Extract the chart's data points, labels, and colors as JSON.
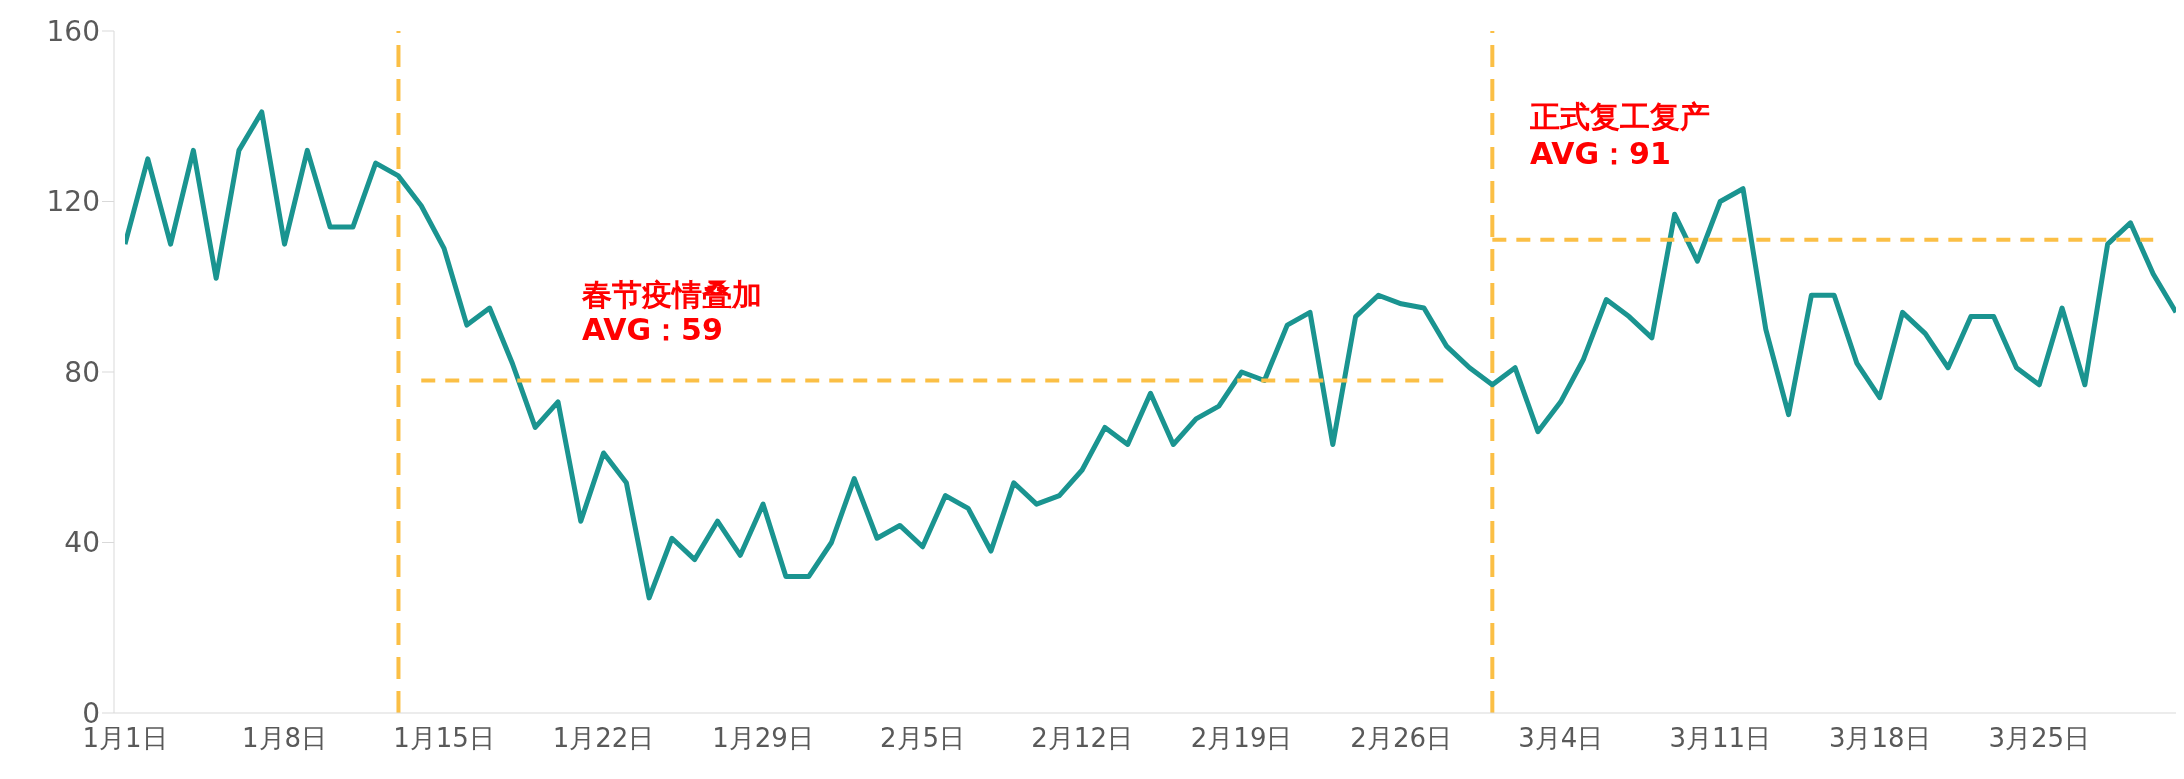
{
  "chart_data": {
    "type": "line",
    "x": [
      "--01-01",
      "--01-02",
      "--01-03",
      "--01-04",
      "--01-05",
      "--01-06",
      "--01-07",
      "--01-08",
      "--01-09",
      "--01-10",
      "--01-11",
      "--01-12",
      "--01-13",
      "--01-14",
      "--01-15",
      "--01-16",
      "--01-17",
      "--01-18",
      "--01-19",
      "--01-20",
      "--01-21",
      "--01-22",
      "--01-23",
      "--01-24",
      "--01-25",
      "--01-26",
      "--01-27",
      "--01-28",
      "--01-29",
      "--01-30",
      "--01-31",
      "--02-01",
      "--02-02",
      "--02-03",
      "--02-04",
      "--02-05",
      "--02-06",
      "--02-07",
      "--02-08",
      "--02-09",
      "--02-10",
      "--02-11",
      "--02-12",
      "--02-13",
      "--02-14",
      "--02-15",
      "--02-16",
      "--02-17",
      "--02-18",
      "--02-19",
      "--02-20",
      "--02-21",
      "--02-22",
      "--02-23",
      "--02-24",
      "--02-25",
      "--02-26",
      "--02-27",
      "--02-28",
      "--02-29",
      "--03-01",
      "--03-02",
      "--03-03",
      "--03-04",
      "--03-05",
      "--03-06",
      "--03-07",
      "--03-08",
      "--03-09",
      "--03-10",
      "--03-11",
      "--03-12",
      "--03-13",
      "--03-14",
      "--03-15",
      "--03-16",
      "--03-17",
      "--03-18",
      "--03-19",
      "--03-20",
      "--03-21",
      "--03-22",
      "--03-23",
      "--03-24",
      "--03-25",
      "--03-26",
      "--03-27",
      "--03-28",
      "--03-29",
      "--03-30",
      "--03-31"
    ],
    "series": [
      {
        "color": "#1a9490",
        "values": [
          110,
          130,
          110,
          132,
          102,
          132,
          141,
          110,
          132,
          114,
          114,
          129,
          126,
          119,
          109,
          91,
          95,
          82,
          67,
          73,
          45,
          61,
          54,
          27,
          41,
          36,
          45,
          37,
          49,
          32,
          32,
          40,
          55,
          41,
          44,
          39,
          51,
          48,
          38,
          54,
          49,
          51,
          57,
          67,
          63,
          75,
          63,
          69,
          72,
          80,
          78,
          91,
          94,
          63,
          93,
          98,
          96,
          95,
          86,
          81,
          77,
          81,
          66,
          73,
          83,
          97,
          93,
          88,
          117,
          106,
          120,
          123,
          90,
          70,
          98,
          98,
          82,
          74,
          94,
          89,
          81,
          93,
          93,
          81,
          77,
          95,
          77,
          110,
          115,
          103,
          94
        ]
      },
      {
        "type": "line",
        "color": "#fbbf45",
        "line_style": "dashed",
        "x": [
          "--01-14",
          "--02-28"
        ],
        "values": [
          78,
          78
        ]
      },
      {
        "type": "line",
        "color": "#fbbf45",
        "line_style": "dashed",
        "x": [
          "--03-01",
          "--03-30"
        ],
        "values": [
          111,
          111
        ]
      }
    ],
    "xlim": [
      "--01-01",
      "--03-31"
    ],
    "xticks": [
      {
        "value": "--01-01",
        "label": "1月1日"
      },
      {
        "value": "--01-08",
        "label": "1月8日"
      },
      {
        "value": "--01-15",
        "label": "1月15日"
      },
      {
        "value": "--01-22",
        "label": "1月22日"
      },
      {
        "value": "--01-29",
        "label": "1月29日"
      },
      {
        "value": "--02-05",
        "label": "2月5日"
      },
      {
        "value": "--02-12",
        "label": "2月12日"
      },
      {
        "value": "--02-19",
        "label": "2月19日"
      },
      {
        "value": "--02-26",
        "label": "2月26日"
      },
      {
        "value": "--03-04",
        "label": "3月4日"
      },
      {
        "value": "--03-11",
        "label": "3月11日"
      },
      {
        "value": "--03-18",
        "label": "3月18日"
      },
      {
        "value": "--03-25",
        "label": "3月25日"
      }
    ],
    "ylim": [
      0,
      160
    ],
    "yticks": [
      0,
      40,
      80,
      120,
      160
    ],
    "line_style": "solid",
    "marker": "none",
    "ref_lines": [
      {
        "axis": "x",
        "value": "--01-13",
        "color": "#fbbf45",
        "line_style": "dashed"
      },
      {
        "axis": "x",
        "value": "--03-01",
        "color": "#fbbf45",
        "line_style": "dashed"
      }
    ],
    "annotations": [
      "春节疫情叠加",
      "AVG：59",
      "正式复工复产",
      "AVG：91"
    ]
  }
}
